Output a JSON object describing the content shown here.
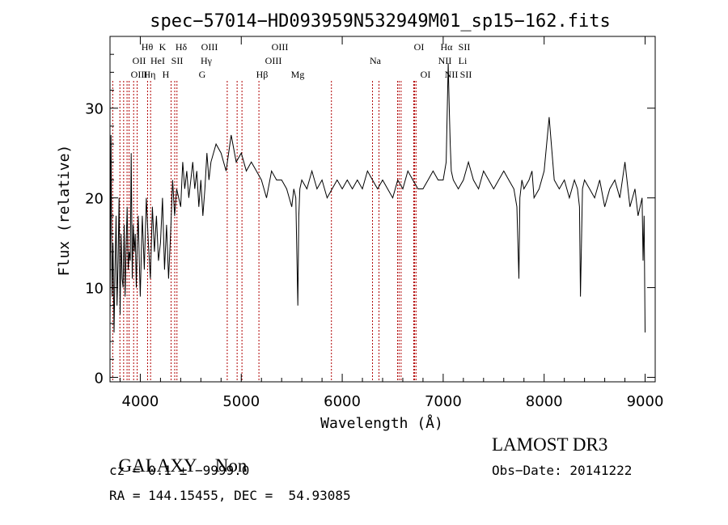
{
  "chart_data": {
    "type": "line",
    "title": "spec−57014−HD093959N532949M01_sp15−162.fits",
    "xlabel": "Wavelength (Å)",
    "ylabel": "Flux (relative)",
    "xlim": [
      3700,
      9100
    ],
    "ylim": [
      -0.5,
      38
    ],
    "xticks": [
      4000,
      5000,
      6000,
      7000,
      8000,
      9000
    ],
    "yticks": [
      0,
      10,
      20,
      30
    ],
    "grid": false,
    "series": [
      {
        "x": [
          3700,
          3710,
          3720,
          3730,
          3740,
          3750,
          3760,
          3770,
          3780,
          3790,
          3800,
          3810,
          3820,
          3830,
          3840,
          3850,
          3860,
          3870,
          3880,
          3890,
          3900,
          3910,
          3920,
          3930,
          3940,
          3950,
          3960,
          3970,
          3980,
          3990,
          4000,
          4020,
          4040,
          4060,
          4080,
          4100,
          4120,
          4140,
          4160,
          4180,
          4200,
          4220,
          4240,
          4260,
          4280,
          4300,
          4320,
          4340,
          4360,
          4380,
          4400,
          4420,
          4440,
          4460,
          4480,
          4500,
          4520,
          4540,
          4560,
          4580,
          4600,
          4620,
          4640,
          4660,
          4680,
          4700,
          4750,
          4800,
          4850,
          4900,
          4950,
          5000,
          5050,
          5100,
          5150,
          5200,
          5250,
          5300,
          5350,
          5400,
          5450,
          5500,
          5520,
          5540,
          5560,
          5570,
          5580,
          5600,
          5650,
          5700,
          5750,
          5800,
          5850,
          5900,
          5950,
          6000,
          6050,
          6100,
          6150,
          6200,
          6250,
          6300,
          6350,
          6400,
          6450,
          6500,
          6550,
          6600,
          6650,
          6700,
          6750,
          6800,
          6850,
          6900,
          6950,
          7000,
          7030,
          7050,
          7060,
          7070,
          7080,
          7100,
          7150,
          7200,
          7250,
          7300,
          7350,
          7400,
          7450,
          7500,
          7550,
          7600,
          7650,
          7700,
          7730,
          7750,
          7760,
          7780,
          7800,
          7850,
          7880,
          7900,
          7950,
          8000,
          8050,
          8100,
          8150,
          8200,
          8250,
          8300,
          8330,
          8350,
          8360,
          8380,
          8400,
          8450,
          8500,
          8550,
          8600,
          8650,
          8700,
          8750,
          8800,
          8850,
          8900,
          8930,
          8950,
          8970,
          8980,
          8990,
          9000
        ],
        "values": [
          6,
          27,
          9,
          15,
          5,
          12,
          18,
          8,
          13,
          20,
          7,
          16,
          11,
          10,
          17,
          9,
          15,
          19,
          12,
          14,
          13,
          25,
          11,
          17,
          14,
          16,
          10,
          15,
          18,
          13,
          9,
          18,
          12,
          20,
          15,
          11,
          19,
          14,
          18,
          13,
          15,
          20,
          12,
          17,
          11,
          16,
          22,
          18,
          21,
          20,
          19,
          24,
          21,
          23,
          20,
          22,
          24,
          21,
          23,
          19,
          22,
          18,
          21,
          25,
          22,
          24,
          26,
          25,
          23,
          27,
          24,
          25,
          23,
          24,
          23,
          22,
          20,
          23,
          22,
          22,
          21,
          19,
          21,
          20,
          8,
          18,
          21,
          22,
          21,
          23,
          21,
          22,
          20,
          21,
          22,
          21,
          22,
          21,
          22,
          21,
          23,
          22,
          21,
          22,
          21,
          20,
          22,
          21,
          23,
          22,
          21,
          21,
          22,
          23,
          22,
          22,
          24,
          35,
          30,
          26,
          23,
          22,
          21,
          22,
          24,
          22,
          21,
          23,
          22,
          21,
          22,
          23,
          22,
          21,
          19,
          11,
          20,
          22,
          21,
          22,
          23,
          20,
          21,
          23,
          29,
          22,
          21,
          22,
          20,
          22,
          21,
          19,
          9,
          21,
          22,
          21,
          20,
          22,
          19,
          21,
          22,
          20,
          24,
          19,
          21,
          18,
          19,
          20,
          13,
          18,
          5
        ]
      }
    ],
    "line_annotations": [
      {
        "labels": [
          "OII",
          "OIII"
        ],
        "x": [
          3727,
          3869
        ]
      },
      {
        "labels": [
          "Hθ"
        ],
        "x": [
          3798
        ]
      },
      {
        "labels": [
          "Hη"
        ],
        "x": [
          3835
        ]
      },
      {
        "labels": [
          "HeI"
        ],
        "x": [
          3889
        ]
      },
      {
        "labels": [
          "K"
        ],
        "x": [
          3934
        ]
      },
      {
        "labels": [
          "H"
        ],
        "x": [
          3969
        ]
      },
      {
        "labels": [
          "Hδ"
        ],
        "x": [
          4102
        ]
      },
      {
        "labels": [
          "SII"
        ],
        "x": [
          4072
        ]
      },
      {
        "labels": [
          "OIII",
          "Hγ",
          "G"
        ],
        "x": [
          4363,
          4341,
          4305
        ]
      },
      {
        "labels": [
          "OIII",
          "OIII"
        ],
        "x": [
          4959,
          5007
        ]
      },
      {
        "labels": [
          "Hβ"
        ],
        "x": [
          4861
        ]
      },
      {
        "labels": [
          "Mg"
        ],
        "x": [
          5175
        ]
      },
      {
        "labels": [
          "Na"
        ],
        "x": [
          5893
        ]
      },
      {
        "labels": [
          "OI",
          "OI"
        ],
        "x": [
          6300,
          6364
        ]
      },
      {
        "labels": [
          "Hα",
          "NII",
          "NII"
        ],
        "x": [
          6563,
          6548,
          6583
        ]
      },
      {
        "labels": [
          "SII",
          "Li",
          "SII"
        ],
        "x": [
          6717,
          6708,
          6731
        ]
      }
    ],
    "annotation_text": {
      "row1": [
        "Hθ",
        "K",
        "Hδ",
        "OIII",
        "OIII",
        "OI",
        "Hα",
        "SII"
      ],
      "row2": [
        "OII",
        "HeI",
        "SII",
        "Hγ",
        "OIII",
        "Na",
        "NII",
        "Li"
      ],
      "row3": [
        "OIII",
        "Hη",
        "H",
        "G",
        "Hβ",
        "Mg",
        "OI",
        "NII",
        "SII"
      ]
    }
  },
  "info": {
    "class": "GALAXY",
    "subclass": "Non",
    "cz": "cz = 0.1 ± −9999.0",
    "radec": "RA = 144.15455, DEC =  54.93085",
    "survey": "LAMOST DR3",
    "obsdate": "Obs−Date: 20141222"
  }
}
